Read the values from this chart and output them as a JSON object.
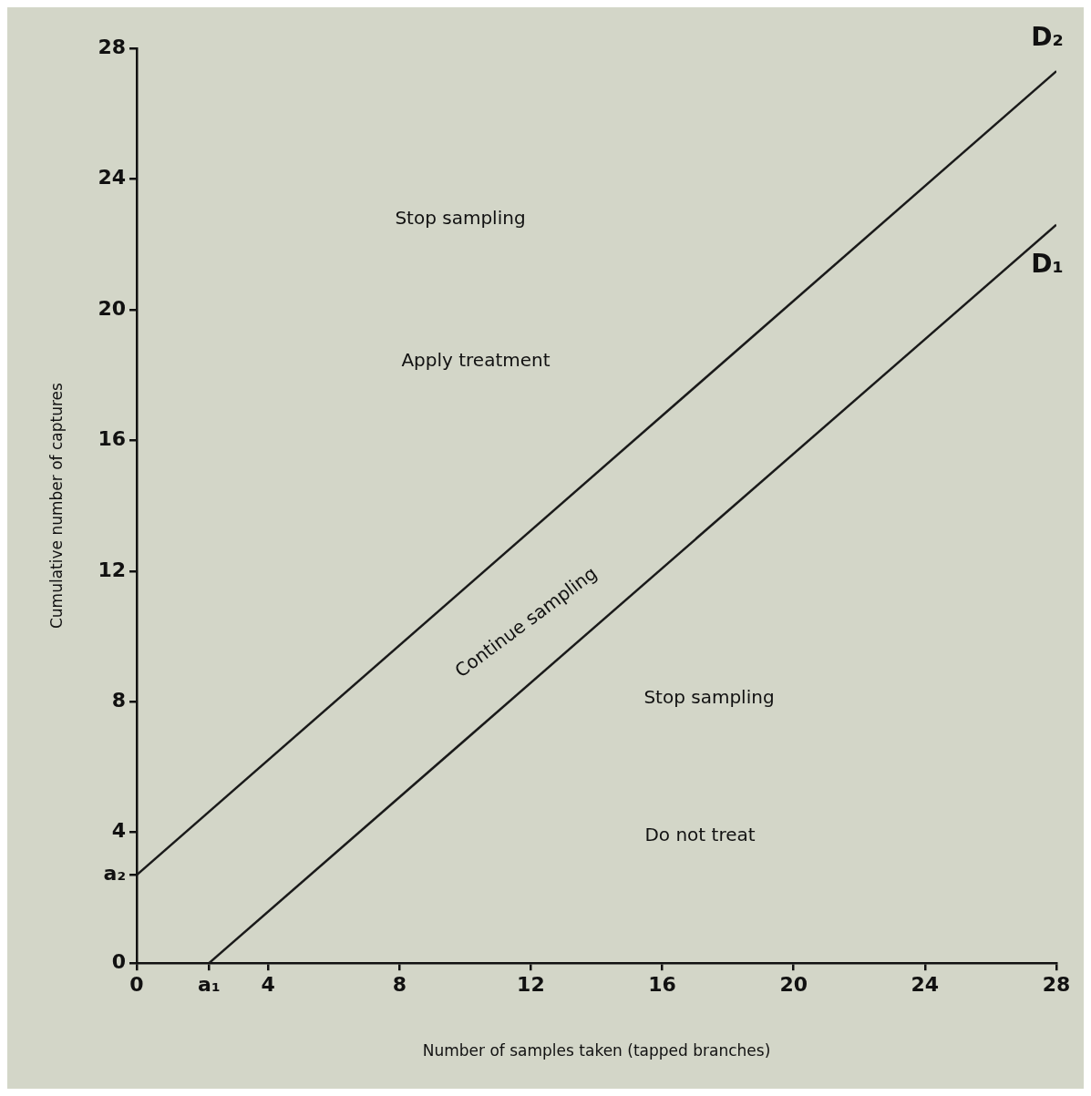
{
  "chart_data": {
    "type": "line",
    "xlabel": "Number of samples taken (tapped branches)",
    "ylabel": "Cumulative number of captures",
    "xlim": [
      0,
      28
    ],
    "ylim": [
      0,
      28
    ],
    "xticks": [
      0,
      {
        "value": 2.2,
        "label": "a₁"
      },
      4,
      8,
      12,
      16,
      20,
      24,
      28
    ],
    "yticks": [
      0,
      {
        "value": 2.7,
        "label": "a₂"
      },
      4,
      8,
      12,
      16,
      20,
      24,
      28
    ],
    "grid": false,
    "legend": false,
    "marker": "none",
    "line_style": "solid",
    "series": [
      {
        "name": "D₂",
        "color": "#1a1a1a",
        "x": [
          0,
          28
        ],
        "values": [
          2.7,
          27.3
        ]
      },
      {
        "name": "D₁",
        "color": "#1a1a1a",
        "x": [
          2.2,
          28
        ],
        "values": [
          0,
          22.6
        ]
      }
    ],
    "annotations": [
      "Stop sampling",
      "Apply treatment",
      "Continue sampling",
      "Stop sampling",
      "Do not treat"
    ]
  }
}
